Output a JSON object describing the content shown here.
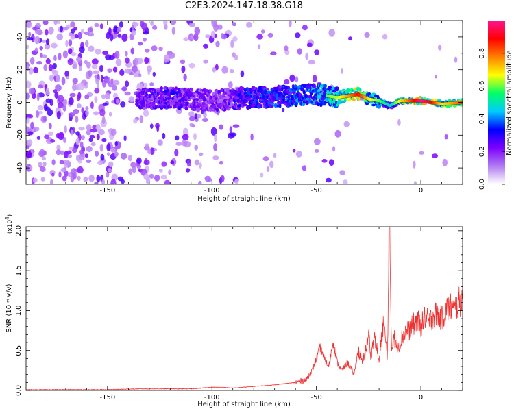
{
  "title": "C2E3.2024.147.18.38.G18",
  "chart_data": [
    {
      "type": "heatmap",
      "xlabel": "Height of straight line (km)",
      "ylabel": "Frequency (Hz)",
      "xlim": [
        -189,
        20
      ],
      "ylim": [
        -50,
        50
      ],
      "xticks": [
        -150,
        -100,
        -50,
        0
      ],
      "yticks": [
        -40,
        -20,
        0,
        20,
        40
      ],
      "colorbar": {
        "label": "Normalized spectral amplitude",
        "range": [
          0,
          1
        ],
        "ticks": [
          "0.0",
          "0.2",
          "0.4",
          "0.6",
          "0.8"
        ],
        "colors": [
          "#ffffff",
          "#b07cf0",
          "#7d00ff",
          "#0000ff",
          "#00ccff",
          "#00ff66",
          "#ffff00",
          "#ff8000",
          "#ff0000",
          "#ff1493"
        ]
      },
      "ridge": {
        "description_points_x": [
          -135,
          -120,
          -100,
          -80,
          -60,
          -50,
          -40,
          -30,
          -25,
          -20,
          -15,
          -10,
          0,
          5,
          10,
          20
        ],
        "frequency_hz": [
          2,
          3,
          1,
          3,
          4,
          5,
          3,
          5,
          2,
          1,
          -2,
          1,
          1,
          0,
          -1,
          0
        ],
        "amplitude": [
          0.35,
          0.4,
          0.3,
          0.45,
          0.5,
          0.55,
          0.65,
          0.9,
          0.7,
          0.6,
          0.45,
          0.7,
          1.0,
          0.9,
          0.7,
          0.85
        ]
      }
    },
    {
      "type": "line",
      "xlabel": "Height of straight line (km)",
      "ylabel": "SNR (10 * v/v)",
      "y_multiplier": "(x10",
      "y_multiplier_exp": "4",
      "y_multiplier_close": ")",
      "xlim": [
        -189,
        20
      ],
      "ylim": [
        0,
        2.05
      ],
      "xticks": [
        -150,
        -100,
        -50,
        0
      ],
      "yticks": [
        "0.0",
        "0.5",
        "1.0",
        "1.5",
        "2.0"
      ],
      "line_color": "#ee3333",
      "series": [
        {
          "x": [
            -189,
            -170,
            -150,
            -135,
            -125,
            -110,
            -100,
            -95,
            -90,
            -80,
            -70,
            -60,
            -55,
            -52,
            -50,
            -48,
            -46,
            -44,
            -42,
            -40,
            -38,
            -35,
            -32,
            -30,
            -28,
            -26,
            -25,
            -24,
            -22,
            -20,
            -18,
            -16,
            -15,
            -14,
            -13,
            -12,
            -10,
            -8,
            -6,
            -4,
            -2,
            0,
            2,
            4,
            6,
            8,
            10,
            12,
            14,
            16,
            18,
            20
          ],
          "y": [
            0.01,
            0.01,
            0.01,
            0.02,
            0.02,
            0.02,
            0.04,
            0.04,
            0.03,
            0.05,
            0.07,
            0.1,
            0.13,
            0.25,
            0.4,
            0.55,
            0.38,
            0.3,
            0.62,
            0.35,
            0.25,
            0.35,
            0.2,
            0.5,
            0.35,
            0.55,
            0.72,
            0.45,
            0.68,
            0.35,
            0.85,
            0.45,
            2.05,
            0.5,
            0.72,
            0.55,
            0.6,
            0.72,
            0.75,
            0.8,
            0.9,
            0.8,
            0.92,
            0.85,
            0.95,
            0.95,
            0.9,
            1.0,
            1.05,
            1.0,
            1.1,
            1.12
          ]
        }
      ]
    }
  ]
}
